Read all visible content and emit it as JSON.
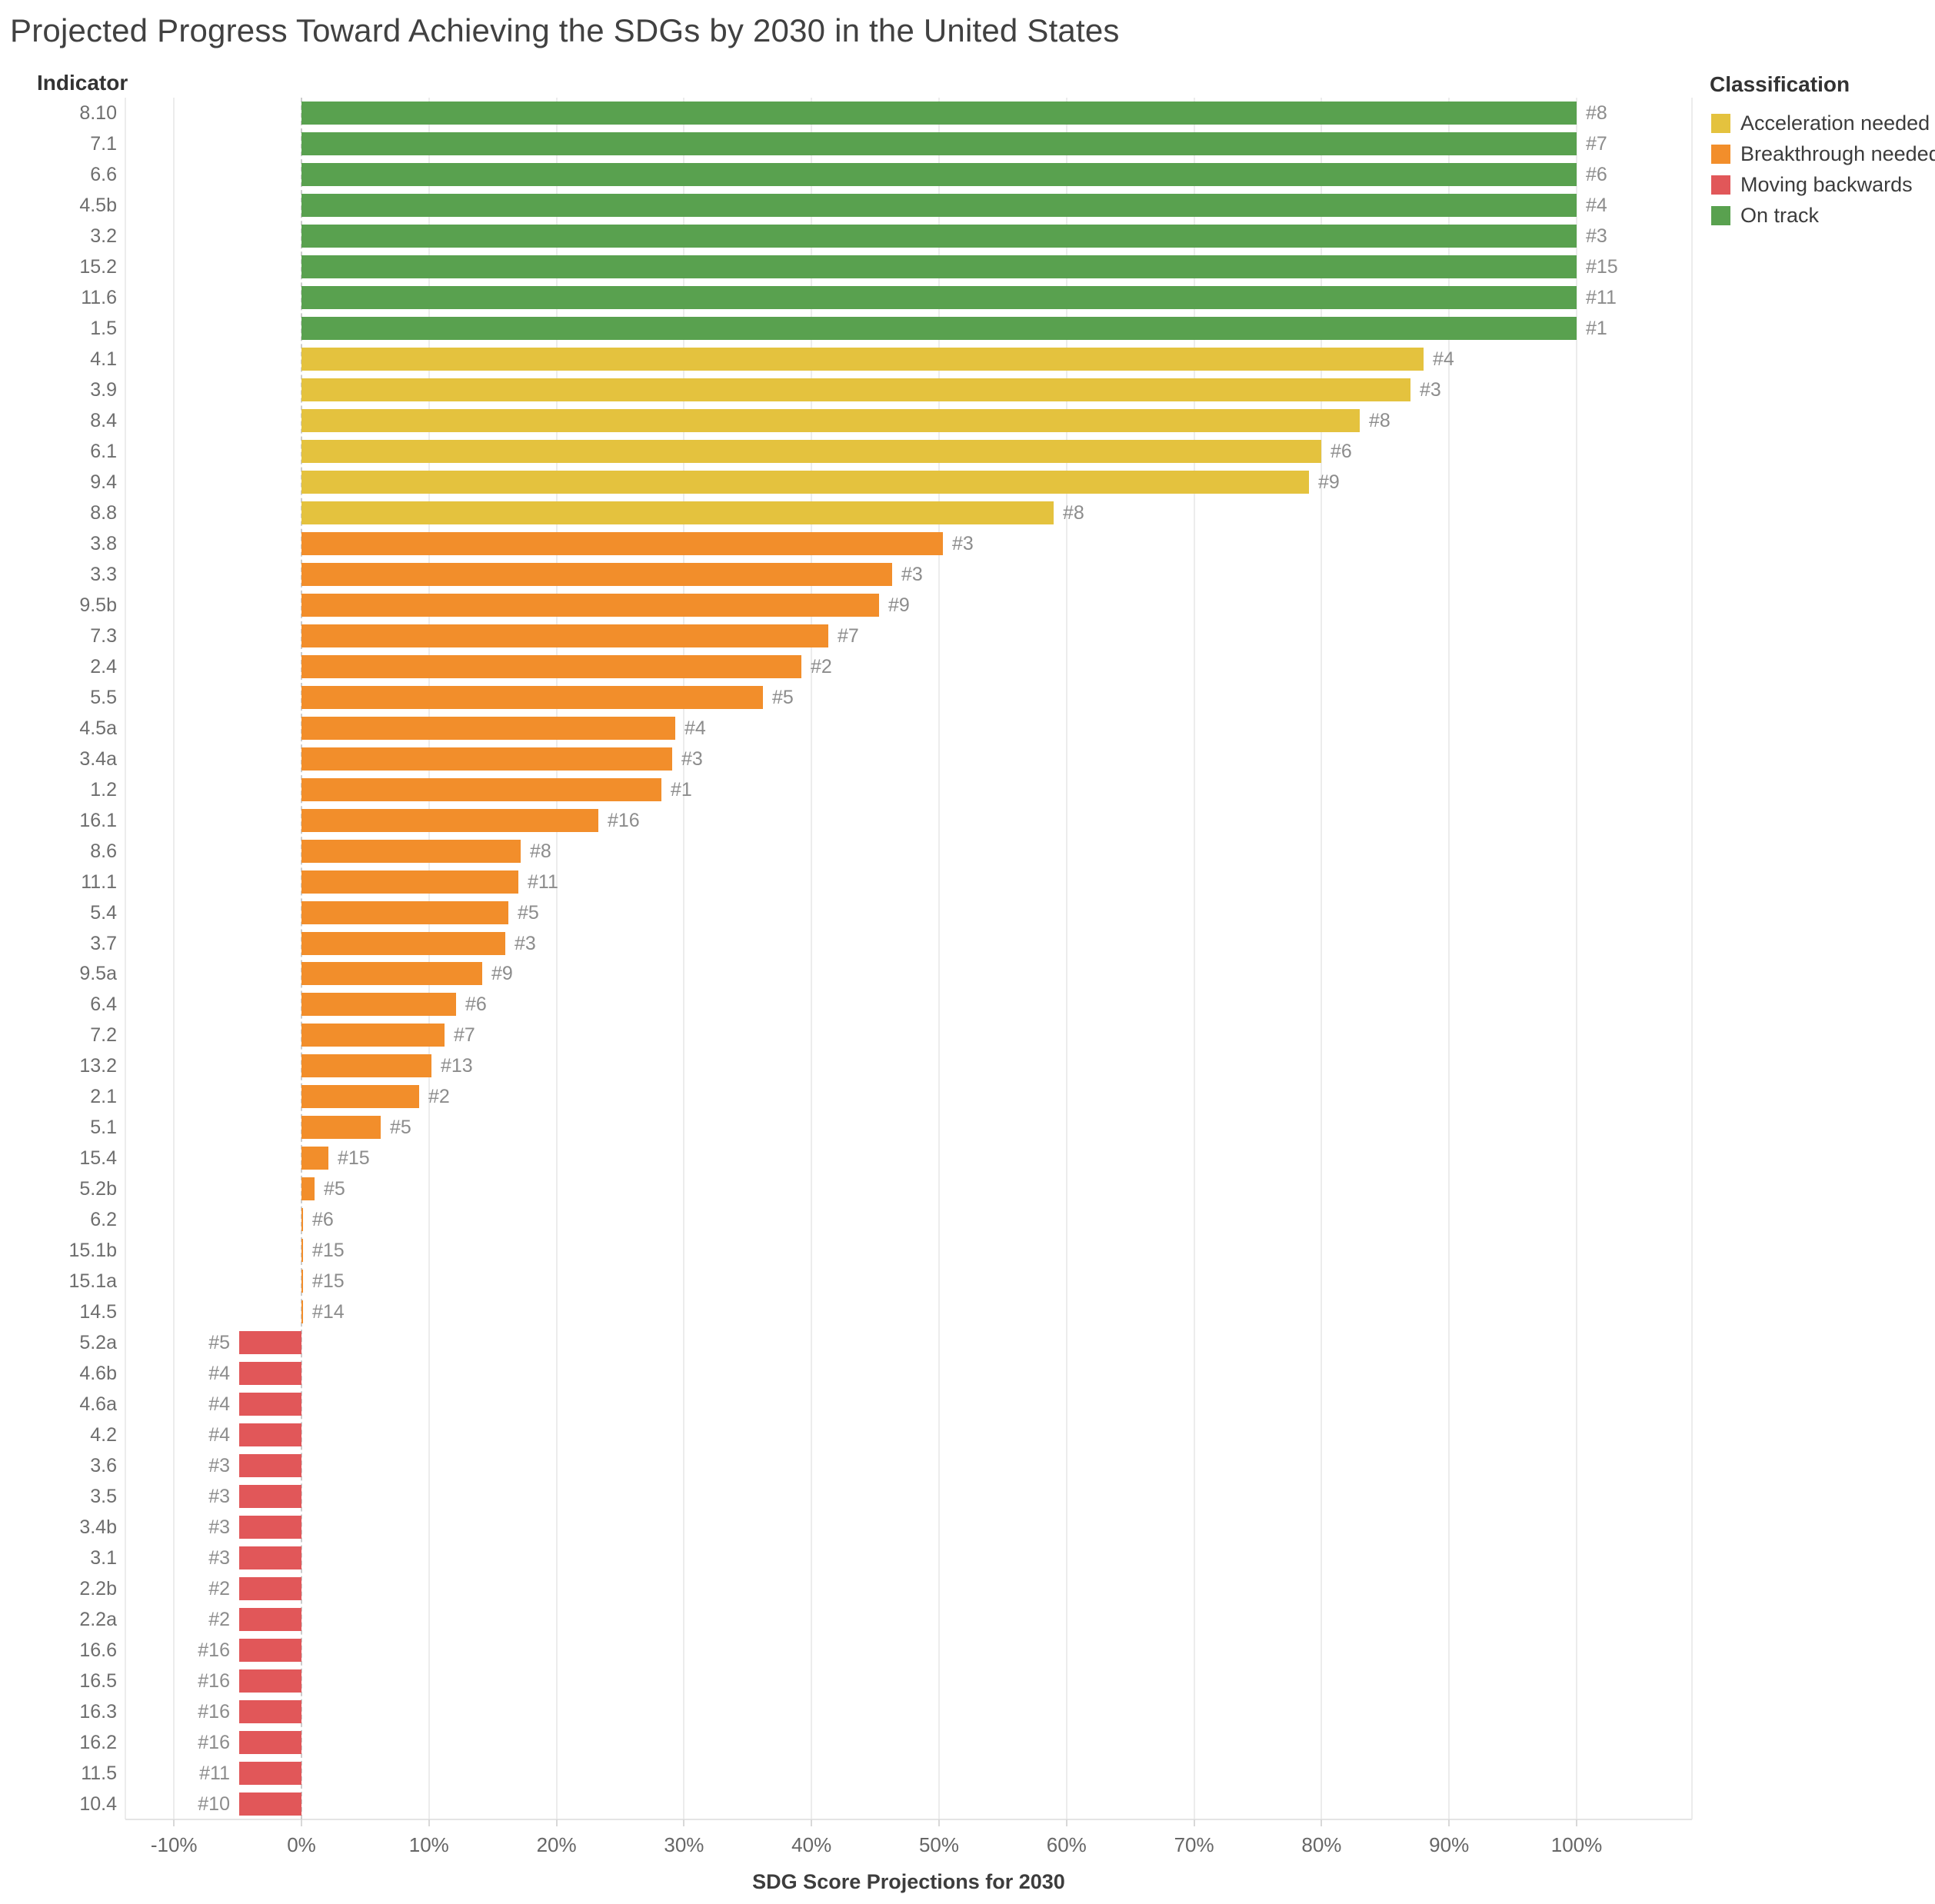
{
  "title": "Projected Progress Toward Achieving the SDGs by 2030 in the United States",
  "y_axis_header": "Indicator",
  "x_axis": {
    "label": "SDG Score Projections for 2030",
    "tick_values": [
      -10,
      0,
      10,
      20,
      30,
      40,
      50,
      60,
      70,
      80,
      90,
      100
    ],
    "tick_labels": [
      "-10%",
      "0%",
      "10%",
      "20%",
      "30%",
      "40%",
      "50%",
      "60%",
      "70%",
      "80%",
      "90%",
      "100%"
    ]
  },
  "legend": {
    "title": "Classification",
    "items": [
      {
        "key": "acceleration",
        "label": "Acceleration needed",
        "color": "#E4C23E"
      },
      {
        "key": "breakthrough",
        "label": "Breakthrough needed",
        "color": "#F28E2B"
      },
      {
        "key": "backwards",
        "label": "Moving backwards",
        "color": "#E15759"
      },
      {
        "key": "on_track",
        "label": "On track",
        "color": "#59A14F"
      }
    ]
  },
  "classification_colors": {
    "acceleration": "#E4C23E",
    "breakthrough": "#F28E2B",
    "backwards": "#E15759",
    "on_track": "#59A14F"
  },
  "chart_data": {
    "type": "bar",
    "orientation": "horizontal",
    "title": "Projected Progress Toward Achieving the SDGs by 2030 in the United States",
    "xlabel": "SDG Score Projections for 2030",
    "ylabel": "Indicator",
    "xlim": [
      -13.8,
      109
    ],
    "grid": true,
    "legend_position": "top-right",
    "value_unit": "percent",
    "bars": [
      {
        "indicator": "8.10",
        "goal": "#8",
        "value": 100,
        "classification": "on_track"
      },
      {
        "indicator": "7.1",
        "goal": "#7",
        "value": 100,
        "classification": "on_track"
      },
      {
        "indicator": "6.6",
        "goal": "#6",
        "value": 100,
        "classification": "on_track"
      },
      {
        "indicator": "4.5b",
        "goal": "#4",
        "value": 100,
        "classification": "on_track"
      },
      {
        "indicator": "3.2",
        "goal": "#3",
        "value": 100,
        "classification": "on_track"
      },
      {
        "indicator": "15.2",
        "goal": "#15",
        "value": 100,
        "classification": "on_track"
      },
      {
        "indicator": "11.6",
        "goal": "#11",
        "value": 100,
        "classification": "on_track"
      },
      {
        "indicator": "1.5",
        "goal": "#1",
        "value": 100,
        "classification": "on_track"
      },
      {
        "indicator": "4.1",
        "goal": "#4",
        "value": 88,
        "classification": "acceleration"
      },
      {
        "indicator": "3.9",
        "goal": "#3",
        "value": 87,
        "classification": "acceleration"
      },
      {
        "indicator": "8.4",
        "goal": "#8",
        "value": 83,
        "classification": "acceleration"
      },
      {
        "indicator": "6.1",
        "goal": "#6",
        "value": 80,
        "classification": "acceleration"
      },
      {
        "indicator": "9.4",
        "goal": "#9",
        "value": 79,
        "classification": "acceleration"
      },
      {
        "indicator": "8.8",
        "goal": "#8",
        "value": 59,
        "classification": "acceleration"
      },
      {
        "indicator": "3.8",
        "goal": "#3",
        "value": 50.3,
        "classification": "breakthrough"
      },
      {
        "indicator": "3.3",
        "goal": "#3",
        "value": 46.3,
        "classification": "breakthrough"
      },
      {
        "indicator": "9.5b",
        "goal": "#9",
        "value": 45.3,
        "classification": "breakthrough"
      },
      {
        "indicator": "7.3",
        "goal": "#7",
        "value": 41.3,
        "classification": "breakthrough"
      },
      {
        "indicator": "2.4",
        "goal": "#2",
        "value": 39.2,
        "classification": "breakthrough"
      },
      {
        "indicator": "5.5",
        "goal": "#5",
        "value": 36.2,
        "classification": "breakthrough"
      },
      {
        "indicator": "4.5a",
        "goal": "#4",
        "value": 29.3,
        "classification": "breakthrough"
      },
      {
        "indicator": "3.4a",
        "goal": "#3",
        "value": 29.1,
        "classification": "breakthrough"
      },
      {
        "indicator": "1.2",
        "goal": "#1",
        "value": 28.2,
        "classification": "breakthrough"
      },
      {
        "indicator": "16.1",
        "goal": "#16",
        "value": 23.3,
        "classification": "breakthrough"
      },
      {
        "indicator": "8.6",
        "goal": "#8",
        "value": 17.2,
        "classification": "breakthrough"
      },
      {
        "indicator": "11.1",
        "goal": "#11",
        "value": 17.0,
        "classification": "breakthrough"
      },
      {
        "indicator": "5.4",
        "goal": "#5",
        "value": 16.2,
        "classification": "breakthrough"
      },
      {
        "indicator": "3.7",
        "goal": "#3",
        "value": 16.0,
        "classification": "breakthrough"
      },
      {
        "indicator": "9.5a",
        "goal": "#9",
        "value": 14.2,
        "classification": "breakthrough"
      },
      {
        "indicator": "6.4",
        "goal": "#6",
        "value": 12.1,
        "classification": "breakthrough"
      },
      {
        "indicator": "7.2",
        "goal": "#7",
        "value": 11.2,
        "classification": "breakthrough"
      },
      {
        "indicator": "13.2",
        "goal": "#13",
        "value": 10.2,
        "classification": "breakthrough"
      },
      {
        "indicator": "2.1",
        "goal": "#2",
        "value": 9.2,
        "classification": "breakthrough"
      },
      {
        "indicator": "5.1",
        "goal": "#5",
        "value": 6.2,
        "classification": "breakthrough"
      },
      {
        "indicator": "15.4",
        "goal": "#15",
        "value": 2.1,
        "classification": "breakthrough"
      },
      {
        "indicator": "5.2b",
        "goal": "#5",
        "value": 1.0,
        "classification": "breakthrough"
      },
      {
        "indicator": "6.2",
        "goal": "#6",
        "value": 0.15,
        "classification": "breakthrough"
      },
      {
        "indicator": "15.1b",
        "goal": "#15",
        "value": 0.15,
        "classification": "breakthrough"
      },
      {
        "indicator": "15.1a",
        "goal": "#15",
        "value": 0.15,
        "classification": "breakthrough"
      },
      {
        "indicator": "14.5",
        "goal": "#14",
        "value": 0.15,
        "classification": "breakthrough"
      },
      {
        "indicator": "5.2a",
        "goal": "#5",
        "value": -4.9,
        "classification": "backwards"
      },
      {
        "indicator": "4.6b",
        "goal": "#4",
        "value": -4.9,
        "classification": "backwards"
      },
      {
        "indicator": "4.6a",
        "goal": "#4",
        "value": -4.9,
        "classification": "backwards"
      },
      {
        "indicator": "4.2",
        "goal": "#4",
        "value": -4.9,
        "classification": "backwards"
      },
      {
        "indicator": "3.6",
        "goal": "#3",
        "value": -4.9,
        "classification": "backwards"
      },
      {
        "indicator": "3.5",
        "goal": "#3",
        "value": -4.9,
        "classification": "backwards"
      },
      {
        "indicator": "3.4b",
        "goal": "#3",
        "value": -4.9,
        "classification": "backwards"
      },
      {
        "indicator": "3.1",
        "goal": "#3",
        "value": -4.9,
        "classification": "backwards"
      },
      {
        "indicator": "2.2b",
        "goal": "#2",
        "value": -4.9,
        "classification": "backwards"
      },
      {
        "indicator": "2.2a",
        "goal": "#2",
        "value": -4.9,
        "classification": "backwards"
      },
      {
        "indicator": "16.6",
        "goal": "#16",
        "value": -4.9,
        "classification": "backwards"
      },
      {
        "indicator": "16.5",
        "goal": "#16",
        "value": -4.9,
        "classification": "backwards"
      },
      {
        "indicator": "16.3",
        "goal": "#16",
        "value": -4.9,
        "classification": "backwards"
      },
      {
        "indicator": "16.2",
        "goal": "#16",
        "value": -4.9,
        "classification": "backwards"
      },
      {
        "indicator": "11.5",
        "goal": "#11",
        "value": -4.9,
        "classification": "backwards"
      },
      {
        "indicator": "10.4",
        "goal": "#10",
        "value": -4.9,
        "classification": "backwards"
      }
    ]
  }
}
